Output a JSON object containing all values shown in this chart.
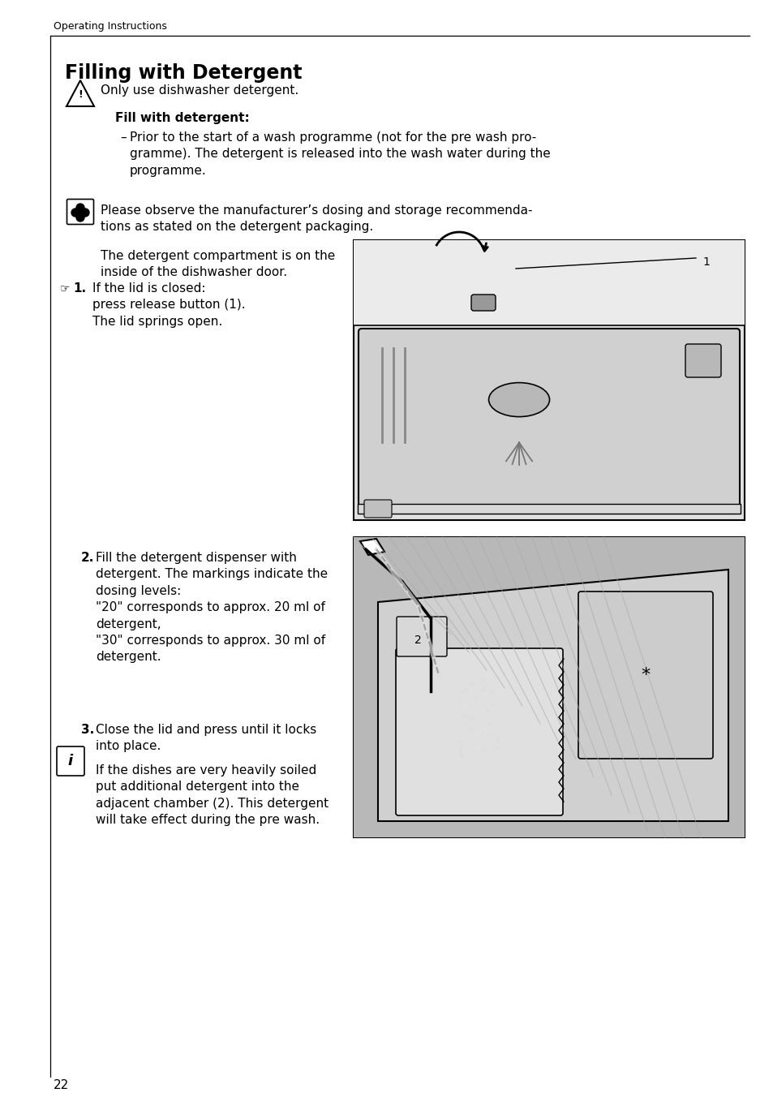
{
  "page_bg": "#ffffff",
  "header_text": "Operating Instructions",
  "title": "Filling with Detergent",
  "page_number": "22",
  "img1_bg": "#d4d4d4",
  "img1_top_bg": "#e0e0e0",
  "img2_bg": "#c8c8c8",
  "text_color": "#000000",
  "line_color": "#000000",
  "warn_text": "Only use dishwasher detergent.",
  "bold_head": "Fill with detergent:",
  "bullet_text": "Prior to the start of a wash programme (not for the pre wash pro-\ngramme). The detergent is released into the wash water during the\nprogramme.",
  "clover_text": "Please observe the manufacturer’s dosing and storage recommenda-\ntions as stated on the detergent packaging.",
  "plain_text": "The detergent compartment is on the\ninside of the dishwasher door.",
  "step1_text": "If the lid is closed:\npress release button (1).\nThe lid springs open.",
  "step2_num": "2.",
  "step2_text": "Fill the detergent dispenser with\ndetergent. The markings indicate the\ndosing levels:\n\"20\" corresponds to approx. 20 ml of\ndetergent,\n\"30\" corresponds to approx. 30 ml of\ndetergent.",
  "step3_num": "3.",
  "step3_text": "Close the lid and press until it locks\ninto place.",
  "info_text": "If the dishes are very heavily soiled\nput additional detergent into the\nadjacent chamber (2). This detergent\nwill take effect during the pre wash."
}
